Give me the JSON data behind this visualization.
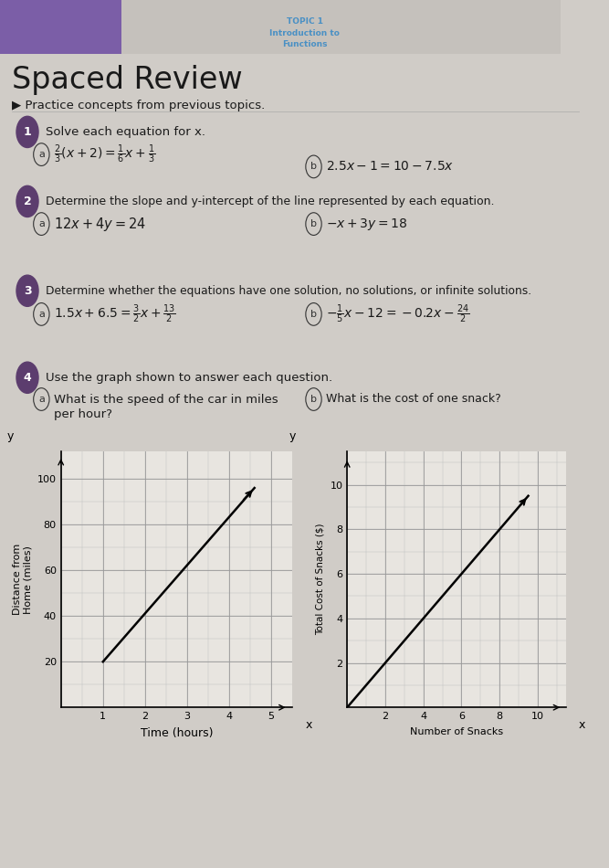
{
  "bg_color": "#d0ccc7",
  "page_bg": "#e8e5e0",
  "title_topic_line1": "TOPIC 1",
  "title_topic_line2": "Introduction to",
  "title_topic_line3": "Functions",
  "title_main": "Spaced Review",
  "subtitle": "▶ Practice concepts from previous topics.",
  "circle_color": "#5c3d6e",
  "text_color": "#1a1a1a",
  "topic_color": "#4a90c4",
  "purple_bar_color": "#7b5ea7",
  "graph1": {
    "xlabel": "Time (hours)",
    "ylabel": "Distance from\nHome (miles)",
    "xlim": [
      0,
      5.5
    ],
    "ylim": [
      0,
      112
    ],
    "xticks": [
      1,
      2,
      3,
      4,
      5
    ],
    "yticks": [
      20,
      40,
      60,
      80,
      100
    ],
    "line_x": [
      1,
      4.6
    ],
    "line_y": [
      20,
      96
    ]
  },
  "graph2": {
    "xlabel": "Number of Snacks",
    "ylabel": "Total Cost of Snacks ($)",
    "xlim": [
      0,
      11.5
    ],
    "ylim": [
      0,
      11.5
    ],
    "xticks": [
      2,
      4,
      6,
      8,
      10
    ],
    "yticks": [
      2,
      4,
      6,
      8,
      10
    ],
    "line_x": [
      0,
      9.5
    ],
    "line_y": [
      0,
      9.5
    ]
  }
}
